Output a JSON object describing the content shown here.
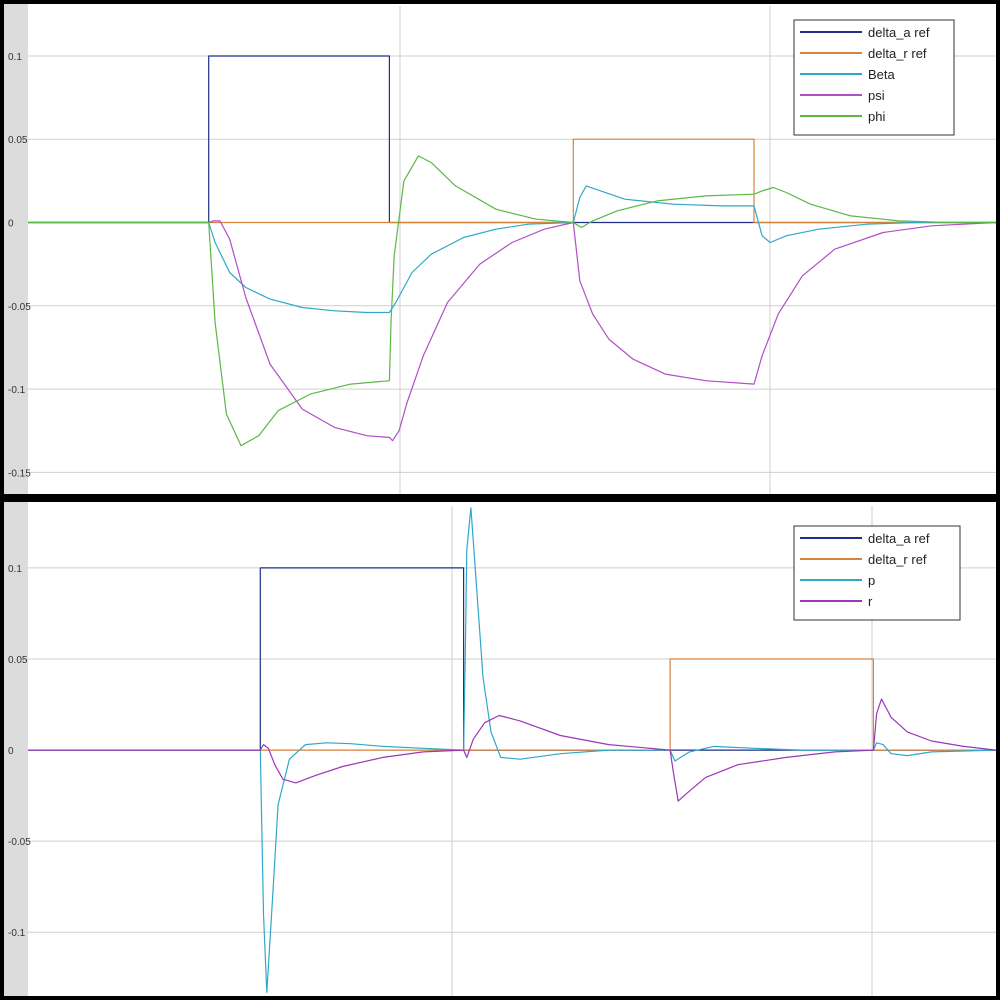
{
  "chart_data": [
    {
      "type": "line",
      "ylim": [
        -0.163,
        0.13
      ],
      "yticks": [
        {
          "v": 0.1,
          "label": "0.1"
        },
        {
          "v": 0.05,
          "label": "0.05"
        },
        {
          "v": 0,
          "label": "0"
        },
        {
          "v": -0.05,
          "label": "-0.05"
        },
        {
          "v": -0.1,
          "label": "-0.1"
        },
        {
          "v": -0.15,
          "label": "-0.15"
        }
      ],
      "legend_position": "top-right",
      "series": [
        {
          "name": "delta_a ref",
          "color": "#1f2f8a",
          "x": [
            0,
            11.2,
            11.2,
            22.4,
            22.4,
            60
          ],
          "y": [
            0,
            0,
            0.1,
            0.1,
            0,
            0
          ]
        },
        {
          "name": "delta_r ref",
          "color": "#d9823b",
          "x": [
            0,
            33.8,
            33.8,
            45.0,
            45.0,
            60
          ],
          "y": [
            0,
            0,
            0.05,
            0.05,
            0,
            0
          ]
        },
        {
          "name": "Beta",
          "color": "#2ea8c9",
          "x": [
            0,
            11.2,
            11.6,
            12.5,
            13.5,
            15,
            17,
            19,
            21,
            22.4,
            22.8,
            23.8,
            25,
            27,
            29,
            31,
            33.8,
            34.2,
            34.6,
            35.5,
            37,
            40,
            43,
            45,
            45.5,
            46,
            47,
            49,
            52,
            55,
            60
          ],
          "y": [
            0,
            0,
            -0.012,
            -0.03,
            -0.039,
            -0.046,
            -0.051,
            -0.053,
            -0.054,
            -0.054,
            -0.048,
            -0.03,
            -0.019,
            -0.009,
            -0.004,
            -0.001,
            0,
            0.015,
            0.022,
            0.019,
            0.014,
            0.011,
            0.01,
            0.01,
            -0.008,
            -0.012,
            -0.008,
            -0.004,
            -0.001,
            0,
            0
          ]
        },
        {
          "name": "psi",
          "color": "#b04fc7",
          "x": [
            0,
            11.2,
            11.5,
            11.9,
            12.5,
            13.5,
            15,
            17,
            19,
            21,
            22.4,
            22.6,
            23,
            23.5,
            24.5,
            26,
            28,
            30,
            32,
            33.8,
            34.2,
            35,
            36,
            37.5,
            39.5,
            42,
            45,
            45.5,
            46.5,
            48,
            50,
            53,
            56,
            60
          ],
          "y": [
            0,
            0,
            0.001,
            0.001,
            -0.01,
            -0.045,
            -0.085,
            -0.112,
            -0.123,
            -0.128,
            -0.129,
            -0.131,
            -0.125,
            -0.108,
            -0.08,
            -0.048,
            -0.025,
            -0.012,
            -0.004,
            0,
            -0.035,
            -0.055,
            -0.07,
            -0.082,
            -0.091,
            -0.095,
            -0.097,
            -0.08,
            -0.055,
            -0.032,
            -0.016,
            -0.006,
            -0.002,
            0
          ]
        },
        {
          "name": "phi",
          "color": "#5cb845",
          "x": [
            0,
            11.2,
            11.6,
            12.3,
            13.2,
            14.3,
            15.5,
            17.5,
            20,
            22.4,
            22.5,
            22.7,
            23.3,
            24.2,
            25,
            26.5,
            29,
            31.5,
            33.8,
            34.3,
            35,
            36.5,
            39,
            42,
            45,
            45.5,
            46.2,
            47,
            48.5,
            51,
            54,
            57,
            60
          ],
          "y": [
            0,
            0,
            -0.06,
            -0.115,
            -0.134,
            -0.128,
            -0.113,
            -0.103,
            -0.097,
            -0.095,
            -0.06,
            -0.02,
            0.025,
            0.04,
            0.036,
            0.022,
            0.008,
            0.002,
            0,
            -0.003,
            0.001,
            0.007,
            0.013,
            0.016,
            0.017,
            0.019,
            0.021,
            0.018,
            0.011,
            0.004,
            0.001,
            0,
            0
          ]
        }
      ]
    },
    {
      "type": "line",
      "ylim": [
        -0.135,
        0.134
      ],
      "yticks": [
        {
          "v": 0.1,
          "label": "0.1"
        },
        {
          "v": 0.05,
          "label": "0.05"
        },
        {
          "v": 0,
          "label": "0"
        },
        {
          "v": -0.05,
          "label": "-0.05"
        },
        {
          "v": -0.1,
          "label": "-0.1"
        }
      ],
      "legend_position": "top-right",
      "series": [
        {
          "name": "delta_a ref",
          "color": "#1f2f8a",
          "x": [
            0,
            14.4,
            14.4,
            27.0,
            27.0,
            60
          ],
          "y": [
            0,
            0,
            0.1,
            0.1,
            0,
            0
          ]
        },
        {
          "name": "delta_r ref",
          "color": "#d9823b",
          "x": [
            0,
            39.8,
            39.8,
            52.4,
            52.4,
            60
          ],
          "y": [
            0,
            0,
            0.05,
            0.05,
            0,
            0
          ]
        },
        {
          "name": "p",
          "color": "#2ea8c9",
          "x": [
            0,
            14.4,
            14.6,
            14.8,
            15.1,
            15.5,
            16.2,
            17.2,
            18.5,
            20,
            22,
            24.5,
            27.0,
            27.1,
            27.2,
            27.45,
            27.8,
            28.2,
            28.7,
            29.3,
            30.5,
            33,
            36,
            39.8,
            40.1,
            41,
            42.5,
            45,
            48,
            52.4,
            52.6,
            53,
            53.5,
            54.5,
            56,
            60
          ],
          "y": [
            0,
            0,
            -0.09,
            -0.133,
            -0.09,
            -0.03,
            -0.005,
            0.003,
            0.004,
            0.0035,
            0.002,
            0.001,
            0,
            0.05,
            0.11,
            0.133,
            0.09,
            0.04,
            0.01,
            -0.004,
            -0.005,
            -0.002,
            0,
            0,
            -0.006,
            -0.001,
            0.002,
            0.001,
            0,
            0,
            0.004,
            0.003,
            -0.002,
            -0.003,
            -0.001,
            0
          ]
        },
        {
          "name": "r",
          "color": "#9b36b8",
          "x": [
            0,
            14.4,
            14.6,
            14.9,
            15.3,
            15.8,
            16.6,
            17.8,
            19.5,
            22,
            24.5,
            27.0,
            27.2,
            27.6,
            28.3,
            29.2,
            30.5,
            33,
            36,
            39.8,
            40.0,
            40.3,
            40.8,
            42,
            44,
            47,
            50,
            52.4,
            52.6,
            52.9,
            53.5,
            54.5,
            56,
            58,
            60
          ],
          "y": [
            0,
            0,
            0.003,
            0.001,
            -0.008,
            -0.016,
            -0.018,
            -0.014,
            -0.009,
            -0.004,
            -0.001,
            0,
            -0.004,
            0.006,
            0.015,
            0.019,
            0.016,
            0.008,
            0.003,
            0,
            -0.012,
            -0.028,
            -0.024,
            -0.015,
            -0.008,
            -0.004,
            -0.001,
            0,
            0.02,
            0.028,
            0.018,
            0.01,
            0.005,
            0.002,
            0
          ]
        }
      ]
    }
  ]
}
